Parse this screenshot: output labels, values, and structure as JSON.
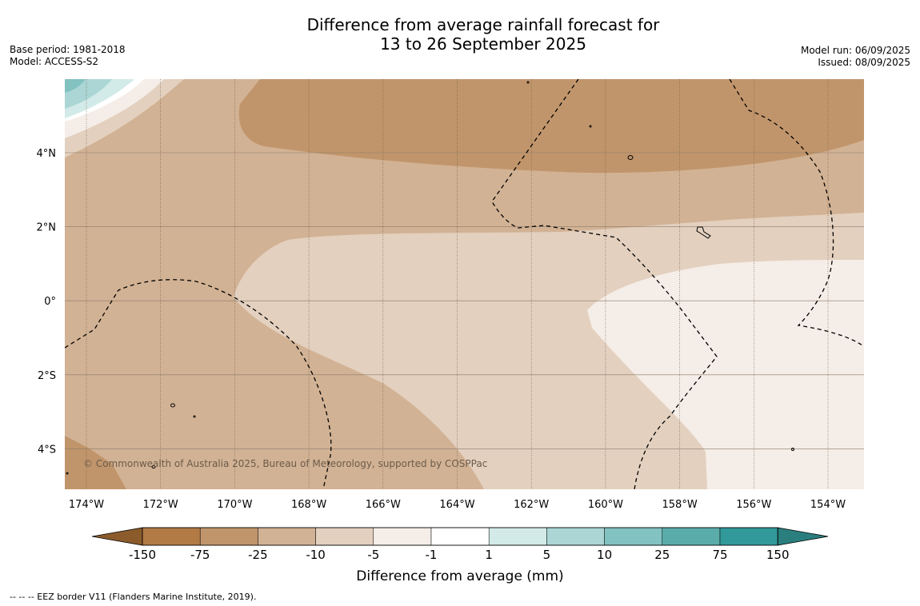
{
  "title": {
    "line1": "Difference from average rainfall forecast for",
    "line2": "13 to 26 September 2025"
  },
  "meta_left": {
    "base_period": "Base period: 1981-2018",
    "model": "Model: ACCESS-S2"
  },
  "meta_right": {
    "model_run": "Model run: 06/09/2025",
    "issued": "Issued: 08/09/2025"
  },
  "map": {
    "x_ticks": [
      "174°W",
      "172°W",
      "170°W",
      "168°W",
      "166°W",
      "164°W",
      "162°W",
      "160°W",
      "158°W",
      "156°W",
      "154°W"
    ],
    "y_ticks": [
      "4°N",
      "2°N",
      "0°",
      "2°S",
      "4°S"
    ],
    "credit": "© Commonwealth of Australia 2025, Bureau of Meteorology, supported by COSPPac"
  },
  "colorbar": {
    "ticks": [
      "-150",
      "-75",
      "-25",
      "-10",
      "-5",
      "-1",
      "1",
      "5",
      "10",
      "25",
      "75",
      "150"
    ],
    "colors": [
      "#8c5b2b",
      "#b27a45",
      "#c1956b",
      "#d2b294",
      "#e3d0bf",
      "#f5ede7",
      "#ffffff",
      "#d3ebe8",
      "#abd6d5",
      "#82c2c1",
      "#5aacaa",
      "#32999a",
      "#2a7f7e"
    ],
    "label": "Difference from average (mm)"
  },
  "legend_note": "--  --  -- EEZ border V11 (Flanders Marine Institute, 2019)."
}
